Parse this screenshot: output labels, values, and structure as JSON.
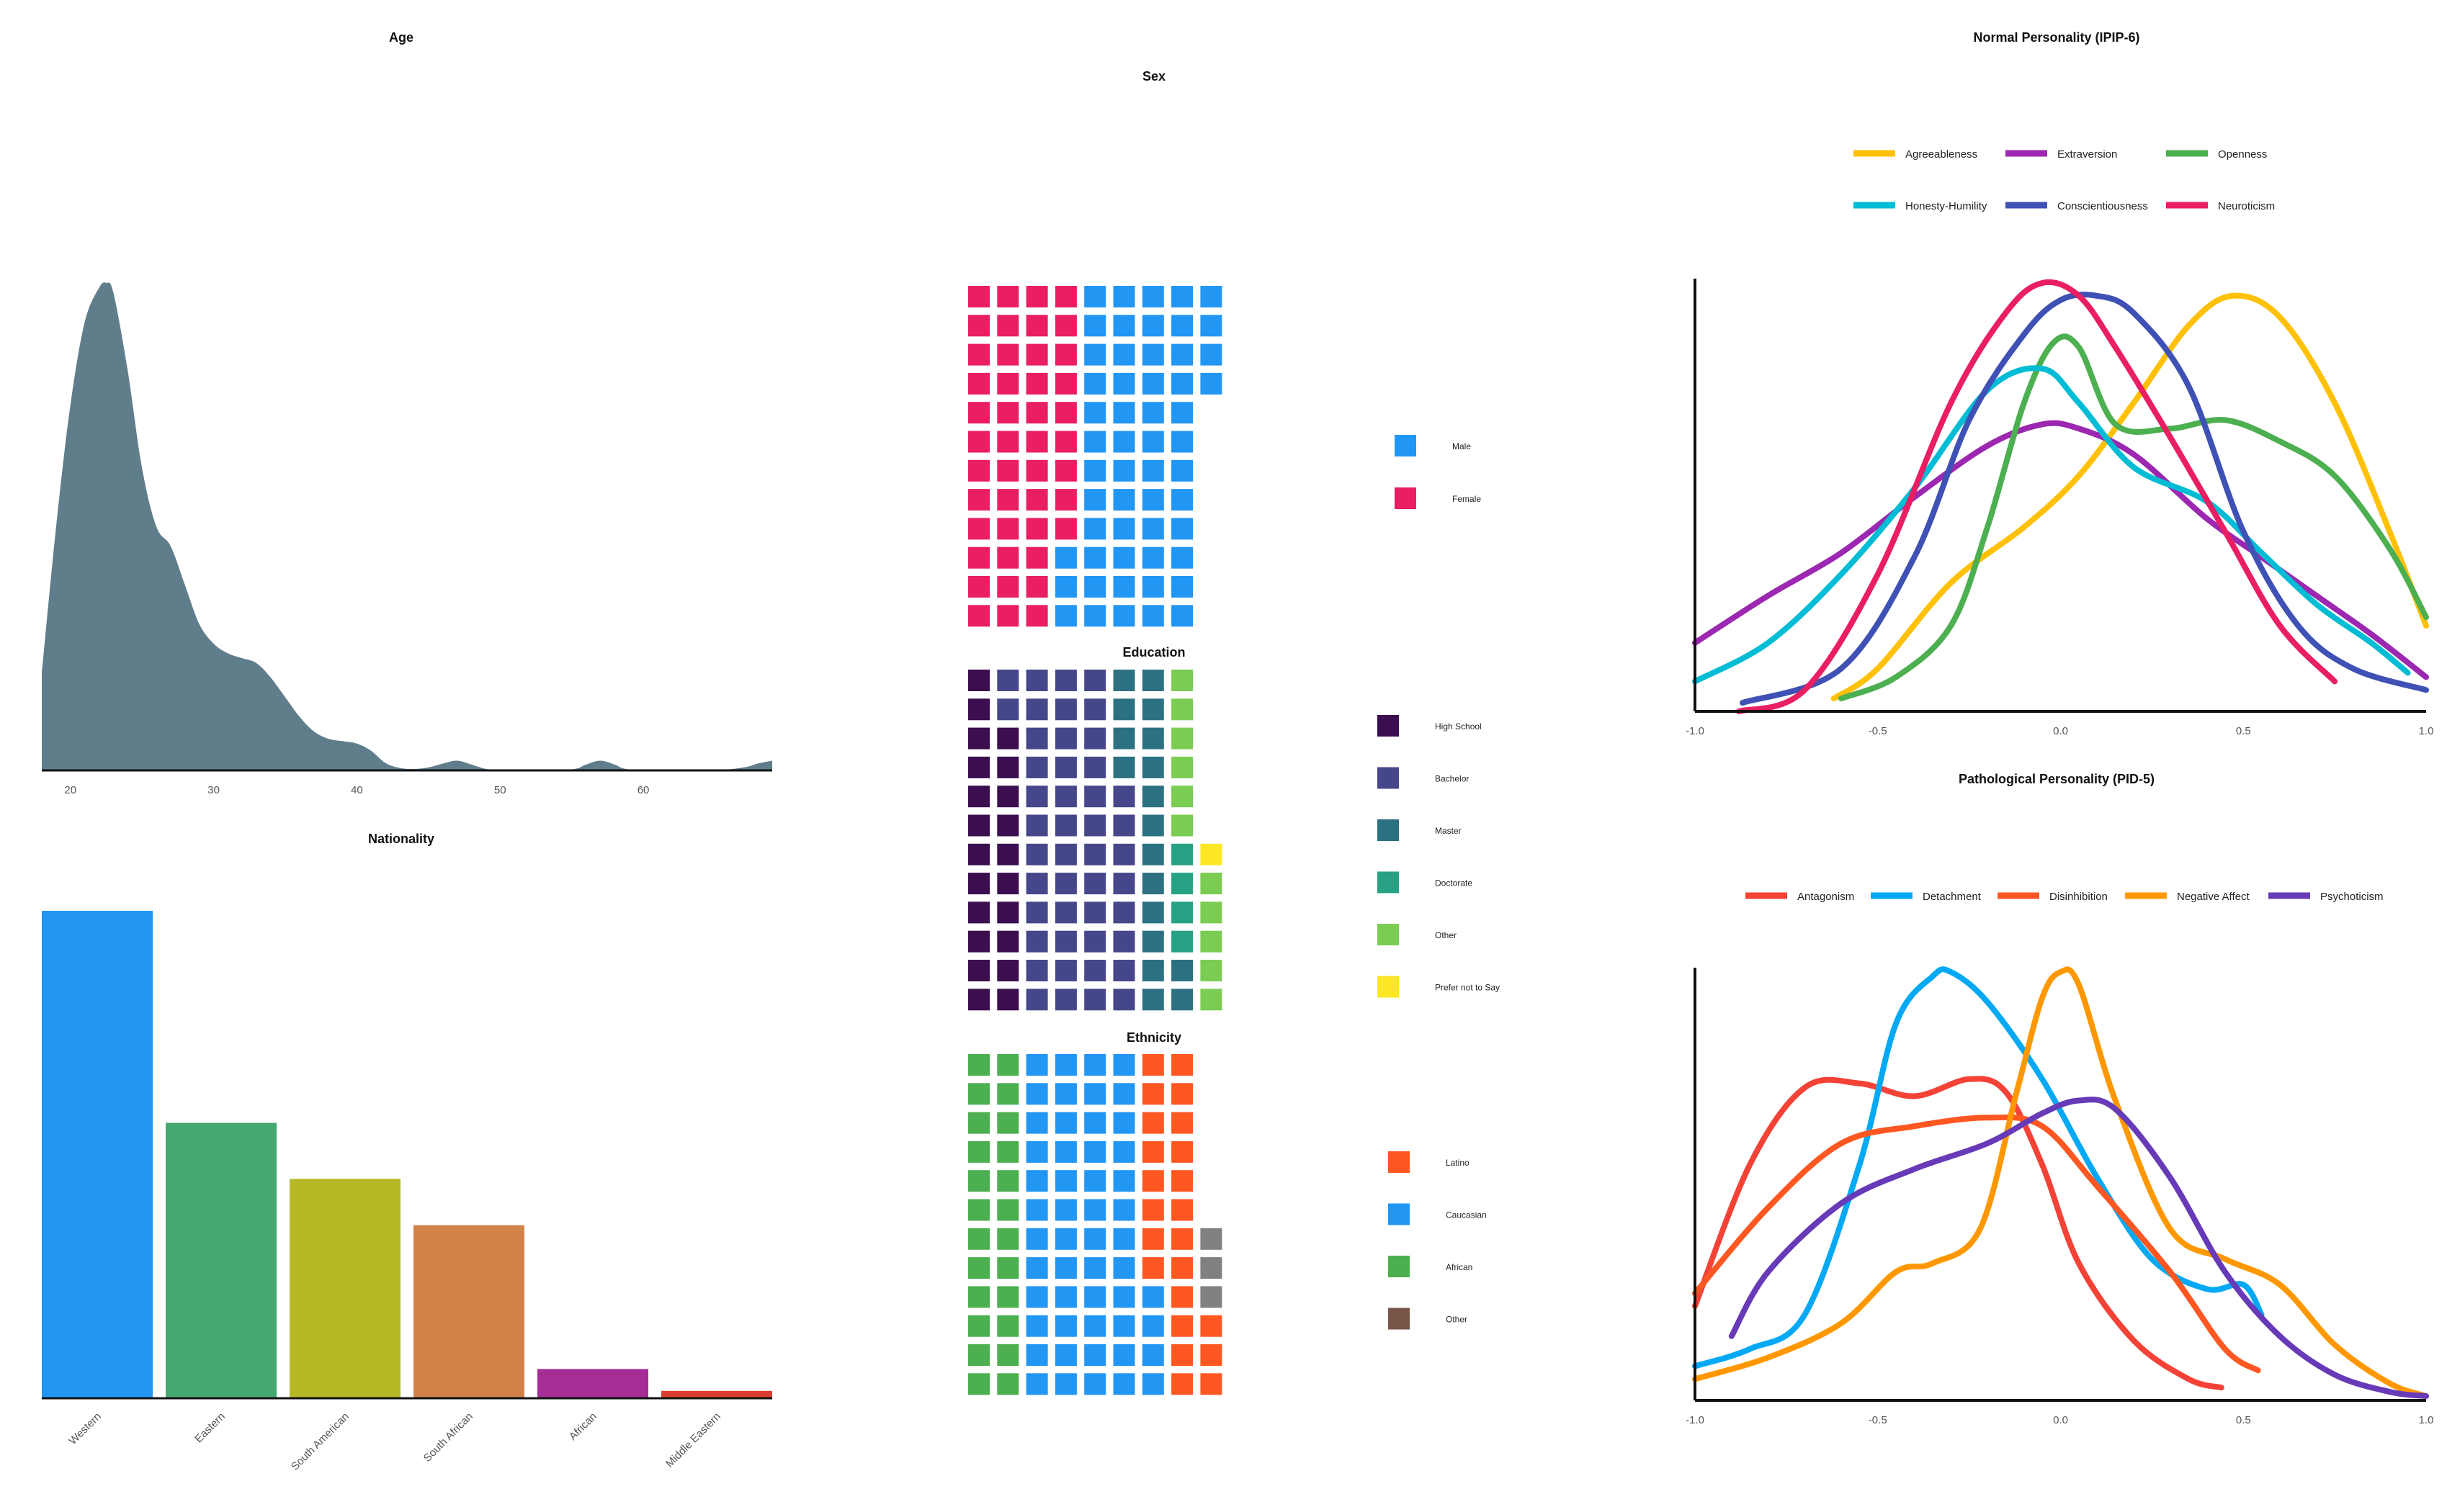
{
  "colors": {
    "age_fill": "#607D8B",
    "male": "#2196F3",
    "female": "#E91E63",
    "edu": [
      "#3B0F4F",
      "#46478A",
      "#2C7182",
      "#26A184",
      "#7ACC52",
      "#FDE725"
    ],
    "eth_latino": "#FF5722",
    "eth_caucasian": "#2196F3",
    "eth_african": "#4CAF50",
    "eth_other_grid": "#808080",
    "eth_other_legend": "#795548",
    "nat": [
      "#2196F3",
      "#43A970",
      "#B7B826",
      "#D5824A",
      "#A52D96",
      "#DD3D30"
    ],
    "ipip": {
      "Agreeableness": "#FFC107",
      "Extraversion": "#9C27B0",
      "Openness": "#4CAF50",
      "Honesty-Humility": "#00BCD4",
      "Conscientiousness": "#3F51B5",
      "Neuroticism": "#E91E63"
    },
    "pid": {
      "Antagonism": "#F44336",
      "Detachment": "#03A9F4",
      "Disinhibition": "#FF5722",
      "Negative Affect": "#FF9800",
      "Psychoticism": "#673AB7"
    }
  },
  "chart_data": [
    {
      "id": "age",
      "type": "area",
      "title": "Age",
      "xlabel": "",
      "ylabel": "",
      "xlim": [
        18,
        69
      ],
      "ylim": [
        0,
        1
      ],
      "xticks": [
        20,
        30,
        40,
        50,
        60
      ],
      "x": [
        18,
        19,
        20,
        21,
        22,
        22.5,
        23,
        24,
        25,
        26,
        27,
        28,
        29,
        30,
        31,
        32,
        33,
        34,
        35,
        36,
        37,
        38,
        39,
        40,
        41,
        42,
        43,
        44,
        45,
        46,
        47,
        48,
        49,
        50,
        52,
        55,
        56,
        57,
        58,
        59,
        62,
        65,
        67,
        68,
        69
      ],
      "y": [
        0.2,
        0.5,
        0.75,
        0.92,
        0.99,
        1.0,
        0.98,
        0.82,
        0.62,
        0.5,
        0.46,
        0.38,
        0.3,
        0.26,
        0.24,
        0.23,
        0.22,
        0.19,
        0.15,
        0.11,
        0.08,
        0.065,
        0.06,
        0.055,
        0.04,
        0.015,
        0.005,
        0.003,
        0.006,
        0.014,
        0.02,
        0.012,
        0.003,
        0.001,
        0.0,
        0.002,
        0.012,
        0.02,
        0.012,
        0.002,
        0.0,
        0.0,
        0.006,
        0.014,
        0.02
      ]
    },
    {
      "id": "nationality",
      "type": "bar",
      "title": "Nationality",
      "xlabel": "",
      "ylabel": "",
      "categories": [
        "Western",
        "Eastern",
        "South American",
        "South African",
        "African",
        "Middle Eastern"
      ],
      "values": [
        100,
        56.5,
        45,
        35.5,
        6,
        1.5
      ],
      "ylim": [
        0,
        100
      ]
    },
    {
      "id": "sex",
      "type": "waffle",
      "title": "Sex",
      "categories": [
        "Male",
        "Female"
      ],
      "values": [
        55,
        45
      ],
      "legend": [
        "Male",
        "Female"
      ]
    },
    {
      "id": "education",
      "type": "waffle",
      "title": "Education",
      "categories": [
        "High School",
        "Bachelor",
        "Master",
        "Doctorate",
        "Other",
        "Prefer not to Say"
      ],
      "values": [
        22,
        46,
        18,
        4,
        11,
        1
      ],
      "legend": [
        "High School",
        "Bachelor",
        "Master",
        "Doctorate",
        "Other",
        "Prefer not to Say"
      ]
    },
    {
      "id": "ethnicity",
      "type": "waffle",
      "title": "Ethnicity",
      "categories": [
        "African",
        "Caucasian",
        "Latino",
        "Other"
      ],
      "values": [
        24,
        52,
        23,
        3
      ],
      "legend": [
        "Latino",
        "Caucasian",
        "African",
        "Other"
      ]
    },
    {
      "id": "ipip6",
      "type": "line",
      "title": "Normal Personality (IPIP-6)",
      "xlabel": "",
      "ylabel": "",
      "xlim": [
        -1.0,
        1.0
      ],
      "ylim": [
        0,
        1
      ],
      "xticks": [
        -1.0,
        -0.5,
        0.0,
        0.5,
        1.0
      ],
      "legend_position": "top",
      "series": [
        {
          "name": "Agreeableness",
          "x": [
            -0.62,
            -0.5,
            -0.3,
            -0.1,
            0.05,
            0.2,
            0.35,
            0.47,
            0.6,
            0.75,
            0.9,
            1.0
          ],
          "y": [
            0.03,
            0.1,
            0.3,
            0.43,
            0.55,
            0.72,
            0.9,
            0.97,
            0.92,
            0.72,
            0.42,
            0.2
          ]
        },
        {
          "name": "Extraversion",
          "x": [
            -1.0,
            -0.8,
            -0.6,
            -0.4,
            -0.2,
            -0.05,
            0.05,
            0.2,
            0.4,
            0.55,
            0.7,
            0.85,
            1.0
          ],
          "y": [
            0.16,
            0.27,
            0.37,
            0.5,
            0.62,
            0.67,
            0.66,
            0.6,
            0.45,
            0.36,
            0.27,
            0.18,
            0.08
          ]
        },
        {
          "name": "Openness",
          "x": [
            -0.6,
            -0.45,
            -0.3,
            -0.2,
            -0.1,
            -0.02,
            0.05,
            0.15,
            0.3,
            0.45,
            0.6,
            0.75,
            0.9,
            1.0
          ],
          "y": [
            0.03,
            0.08,
            0.2,
            0.43,
            0.72,
            0.86,
            0.85,
            0.67,
            0.66,
            0.68,
            0.63,
            0.55,
            0.38,
            0.22
          ]
        },
        {
          "name": "Honesty-Humility",
          "x": [
            -1.0,
            -0.8,
            -0.6,
            -0.4,
            -0.2,
            -0.05,
            0.05,
            0.2,
            0.4,
            0.55,
            0.7,
            0.85,
            0.95
          ],
          "y": [
            0.07,
            0.16,
            0.32,
            0.52,
            0.75,
            0.8,
            0.72,
            0.57,
            0.49,
            0.37,
            0.25,
            0.16,
            0.09
          ]
        },
        {
          "name": "Conscientiousness",
          "x": [
            -0.87,
            -0.6,
            -0.4,
            -0.25,
            -0.1,
            0.0,
            0.1,
            0.2,
            0.35,
            0.5,
            0.65,
            0.8,
            1.0
          ],
          "y": [
            0.02,
            0.1,
            0.36,
            0.68,
            0.88,
            0.96,
            0.97,
            0.93,
            0.76,
            0.42,
            0.2,
            0.1,
            0.05
          ]
        },
        {
          "name": "Neuroticism",
          "x": [
            -0.88,
            -0.7,
            -0.5,
            -0.3,
            -0.15,
            -0.05,
            0.05,
            0.15,
            0.3,
            0.45,
            0.6,
            0.75
          ],
          "y": [
            0.0,
            0.05,
            0.32,
            0.72,
            0.93,
            1.0,
            0.97,
            0.85,
            0.64,
            0.42,
            0.2,
            0.07
          ]
        }
      ]
    },
    {
      "id": "pid5",
      "type": "line",
      "title": "Pathological Personality (PID-5)",
      "xlabel": "",
      "ylabel": "",
      "xlim": [
        -1.0,
        1.0
      ],
      "ylim": [
        0,
        1
      ],
      "xticks": [
        -1.0,
        -0.5,
        0.0,
        0.5,
        1.0
      ],
      "legend_position": "top",
      "series": [
        {
          "name": "Antagonism",
          "x": [
            -1.0,
            -0.85,
            -0.7,
            -0.55,
            -0.4,
            -0.25,
            -0.15,
            -0.05,
            0.05,
            0.2,
            0.35,
            0.44
          ],
          "y": [
            0.22,
            0.55,
            0.73,
            0.74,
            0.71,
            0.75,
            0.72,
            0.55,
            0.32,
            0.14,
            0.05,
            0.03
          ]
        },
        {
          "name": "Detachment",
          "x": [
            -1.0,
            -0.85,
            -0.7,
            -0.55,
            -0.45,
            -0.35,
            -0.3,
            -0.2,
            -0.05,
            0.1,
            0.25,
            0.4,
            0.5,
            0.55
          ],
          "y": [
            0.08,
            0.12,
            0.2,
            0.55,
            0.88,
            0.99,
            1.0,
            0.93,
            0.75,
            0.52,
            0.33,
            0.26,
            0.27,
            0.2
          ]
        },
        {
          "name": "Disinhibition",
          "x": [
            -1.0,
            -0.8,
            -0.6,
            -0.4,
            -0.2,
            -0.05,
            0.1,
            0.3,
            0.45,
            0.54
          ],
          "y": [
            0.25,
            0.45,
            0.6,
            0.64,
            0.66,
            0.64,
            0.5,
            0.3,
            0.12,
            0.07
          ]
        },
        {
          "name": "Negative Affect",
          "x": [
            -1.0,
            -0.8,
            -0.6,
            -0.45,
            -0.35,
            -0.22,
            -0.12,
            -0.05,
            0.0,
            0.05,
            0.15,
            0.3,
            0.45,
            0.6,
            0.75,
            0.9,
            1.0
          ],
          "y": [
            0.05,
            0.1,
            0.18,
            0.3,
            0.32,
            0.4,
            0.72,
            0.94,
            1.0,
            0.97,
            0.7,
            0.4,
            0.33,
            0.27,
            0.13,
            0.04,
            0.01
          ]
        },
        {
          "name": "Psychoticism",
          "x": [
            -0.9,
            -0.8,
            -0.6,
            -0.4,
            -0.2,
            -0.05,
            0.05,
            0.15,
            0.3,
            0.45,
            0.6,
            0.75,
            0.9,
            1.0
          ],
          "y": [
            0.15,
            0.3,
            0.46,
            0.54,
            0.6,
            0.67,
            0.7,
            0.68,
            0.52,
            0.3,
            0.15,
            0.06,
            0.02,
            0.01
          ]
        }
      ]
    }
  ]
}
